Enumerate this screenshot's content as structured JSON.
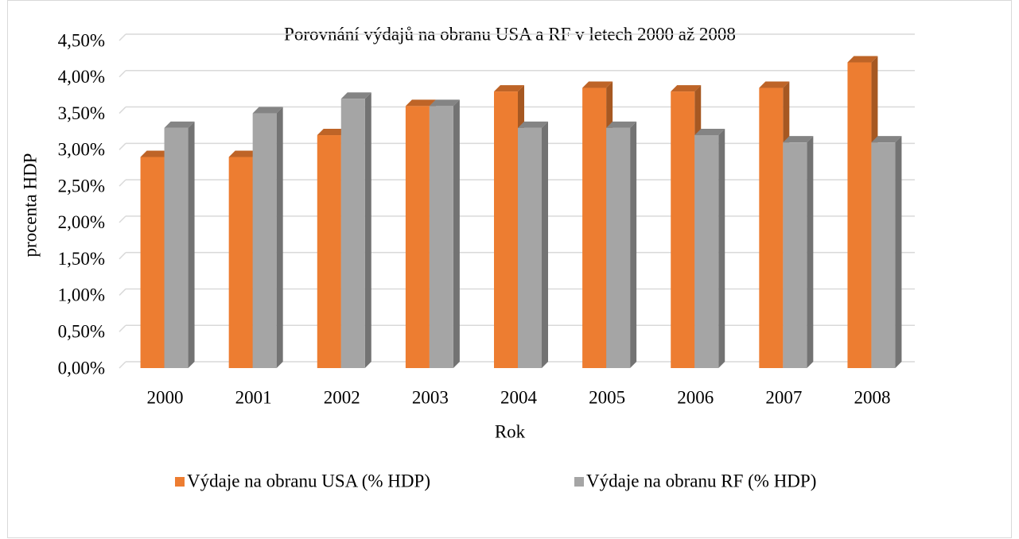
{
  "chart_data": {
    "type": "bar3d",
    "title": "Porovnání výdajů na obranu USA a RF v letech 2000 až 2008",
    "x_label": "Rok",
    "y_label": "procenta HDP",
    "categories": [
      "2000",
      "2001",
      "2002",
      "2003",
      "2004",
      "2005",
      "2006",
      "2007",
      "2008"
    ],
    "series": [
      {
        "name": "Výdaje na obranu USA (% HDP)",
        "color": "#ed7d31",
        "values": [
          2.9,
          2.9,
          3.2,
          3.6,
          3.8,
          3.85,
          3.8,
          3.85,
          4.2
        ]
      },
      {
        "name": "Výdaje na obranu RF (% HDP)",
        "color": "#a5a5a5",
        "values": [
          3.3,
          3.5,
          3.7,
          3.6,
          3.3,
          3.3,
          3.2,
          3.1,
          3.1
        ]
      }
    ],
    "ylim": [
      0,
      4.5
    ],
    "yticks": [
      {
        "value": 0,
        "label": "0,00%"
      },
      {
        "value": 0.5,
        "label": "0,50%"
      },
      {
        "value": 1,
        "label": "1,00%"
      },
      {
        "value": 1.5,
        "label": "1,50%"
      },
      {
        "value": 2,
        "label": "2,00%"
      },
      {
        "value": 2.5,
        "label": "2,50%"
      },
      {
        "value": 3,
        "label": "3,00%"
      },
      {
        "value": 3.5,
        "label": "3,50%"
      },
      {
        "value": 4,
        "label": "4,00%"
      },
      {
        "value": 4.5,
        "label": "4,50%"
      }
    ],
    "grid": true,
    "legend": "bottom"
  }
}
